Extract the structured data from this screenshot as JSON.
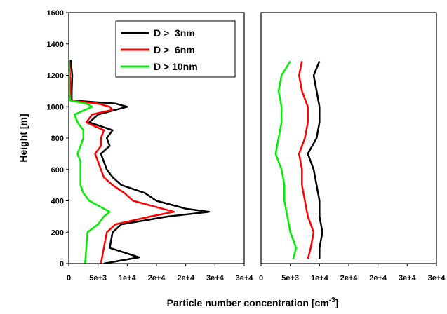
{
  "chart_data": [
    {
      "type": "line",
      "ylabel": "Height [m]",
      "xlabel": [
        "Particle number concentration [cm",
        "-3",
        "]"
      ],
      "xlim": [
        0,
        30000
      ],
      "ylim": [
        0,
        1600
      ],
      "xticks": [
        0,
        {
          "value": 5000,
          "label": "5e+3"
        },
        {
          "value": 10000,
          "label": "1e+4"
        },
        {
          "value": 15000,
          "label": "2e+4"
        },
        {
          "value": 20000,
          "label": "2e+4"
        },
        {
          "value": 25000,
          "label": "3e+4"
        },
        {
          "value": 30000,
          "label": "3e+4"
        }
      ],
      "yticks": [
        0,
        200,
        400,
        600,
        800,
        1000,
        1200,
        1400,
        1600
      ],
      "legend": "upper right",
      "series": [
        {
          "name": "D >  3nm",
          "color": "#000000",
          "x": [
            6000,
            12000,
            7000,
            7500,
            9000,
            17000,
            24000,
            20000,
            15000,
            13000,
            9000,
            7500,
            6500,
            6000,
            5500,
            7000,
            6500,
            7500,
            3500,
            5000,
            10000,
            8000,
            500,
            500,
            600,
            300
          ],
          "y": [
            0,
            40,
            100,
            200,
            250,
            300,
            330,
            350,
            400,
            450,
            500,
            550,
            600,
            650,
            700,
            750,
            800,
            850,
            900,
            950,
            1000,
            1020,
            1040,
            1100,
            1200,
            1300
          ]
        },
        {
          "name": "D >  6nm",
          "color": "#ff0000",
          "x": [
            5500,
            6000,
            6500,
            8000,
            14000,
            18000,
            16000,
            11000,
            9500,
            7500,
            6000,
            5500,
            5000,
            4500,
            5500,
            5500,
            6000,
            3000,
            4000,
            7500,
            7000,
            5000,
            300,
            300,
            200,
            100
          ],
          "y": [
            0,
            100,
            200,
            250,
            300,
            330,
            350,
            400,
            450,
            500,
            550,
            600,
            650,
            700,
            750,
            800,
            850,
            900,
            950,
            980,
            1000,
            1020,
            1040,
            1100,
            1200,
            1300
          ]
        },
        {
          "name": "D > 10nm",
          "color": "#00ee00",
          "x": [
            2800,
            3000,
            3200,
            5000,
            6000,
            7000,
            6000,
            3500,
            2500,
            2000,
            2000,
            2000,
            2000,
            1500,
            2000,
            2500,
            2500,
            1500,
            1000,
            4000,
            3000,
            200,
            100,
            100,
            50
          ],
          "y": [
            0,
            100,
            200,
            250,
            300,
            330,
            350,
            400,
            450,
            500,
            550,
            600,
            650,
            700,
            750,
            800,
            850,
            900,
            950,
            1000,
            1020,
            1040,
            1100,
            1200,
            1300
          ]
        }
      ]
    },
    {
      "type": "line",
      "xlim": [
        0,
        30000
      ],
      "ylim": [
        0,
        1600
      ],
      "xticks": [
        0,
        {
          "value": 5000,
          "label": "5e+3"
        },
        {
          "value": 10000,
          "label": "1e+4"
        },
        {
          "value": 15000,
          "label": "2e+4"
        },
        {
          "value": 20000,
          "label": "2e+4"
        },
        {
          "value": 25000,
          "label": "3e+4"
        },
        {
          "value": 30000,
          "label": "3e+4"
        }
      ],
      "series": [
        {
          "color": "#000000",
          "x": [
            10000,
            10000,
            10500,
            10000,
            10000,
            9500,
            9000,
            8000,
            9500,
            10000,
            10000,
            9500,
            9000,
            10000
          ],
          "y": [
            30,
            100,
            200,
            300,
            400,
            500,
            600,
            700,
            800,
            900,
            1000,
            1100,
            1200,
            1290
          ]
        },
        {
          "color": "#ff0000",
          "x": [
            8000,
            8500,
            9000,
            8000,
            7500,
            7000,
            7000,
            6500,
            7500,
            8000,
            8000,
            7000,
            6500,
            7000
          ],
          "y": [
            30,
            100,
            200,
            300,
            400,
            500,
            600,
            700,
            800,
            900,
            1000,
            1100,
            1200,
            1290
          ]
        },
        {
          "color": "#00ee00",
          "x": [
            5500,
            6000,
            5000,
            4500,
            4000,
            4000,
            3500,
            2500,
            3000,
            3500,
            3500,
            3000,
            3500,
            5000
          ],
          "y": [
            30,
            100,
            200,
            300,
            400,
            500,
            600,
            700,
            800,
            900,
            1000,
            1100,
            1200,
            1290
          ]
        }
      ]
    }
  ]
}
